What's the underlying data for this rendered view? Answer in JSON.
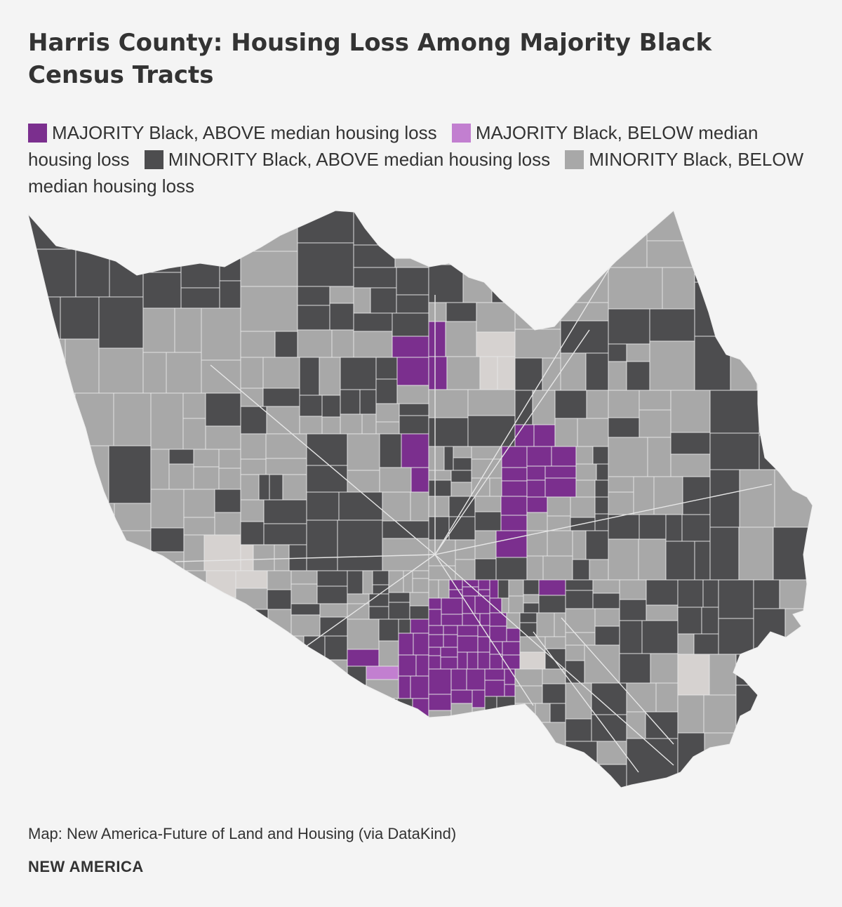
{
  "title": "Harris County: Housing Loss Among Majority Black Census Tracts",
  "legend": [
    {
      "label": "MAJORITY Black, ABOVE median housing loss",
      "color": "#7b2f8e"
    },
    {
      "label": "MAJORITY Black, BELOW median housing loss",
      "color": "#c27fd0"
    },
    {
      "label": "MINORITY Black, ABOVE median housing loss",
      "color": "#4d4d4f"
    },
    {
      "label": "MINORITY Black, BELOW median housing loss",
      "color": "#a8a8a8"
    }
  ],
  "no_data_color": "#d6d2d0",
  "source": "Map: New America-Future of Land and Housing (via DataKind)",
  "brand": "NEW AMERICA"
}
